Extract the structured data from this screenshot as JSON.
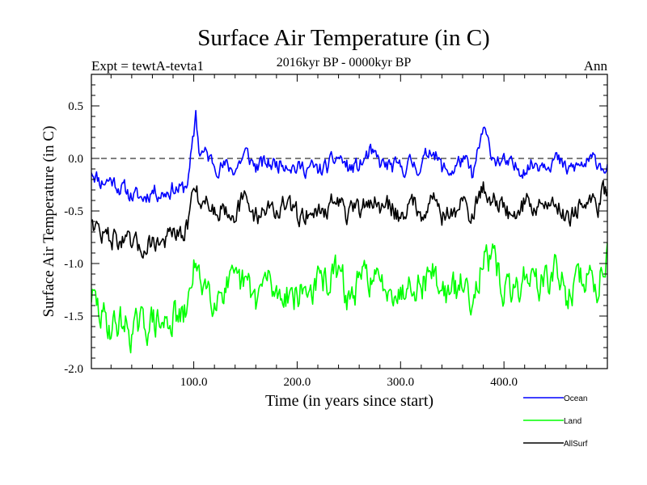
{
  "chart_data": {
    "type": "line",
    "title": "Surface Air Temperature (in C)",
    "subtitle": "2016kyr BP - 0000kyr BP",
    "expt_label": "Expt = tewtA-tevta1",
    "period_label": "Ann",
    "xlabel": "Time (in years since start)",
    "ylabel": "Surface Air Temperature (in C)",
    "xlim": [
      1,
      500
    ],
    "ylim": [
      -2.0,
      0.8
    ],
    "xticks": [
      100,
      200,
      300,
      400
    ],
    "xtick_labels": [
      "100.0",
      "200.0",
      "300.0",
      "400.0"
    ],
    "yticks": [
      -2.0,
      -1.5,
      -1.0,
      -0.5,
      0.0,
      0.5
    ],
    "ytick_labels": [
      "-2.0",
      "-1.5",
      "-1.0",
      "-0.5",
      "0.0",
      "0.5"
    ],
    "reference_line": 0.0,
    "series": [
      {
        "name": "Ocean",
        "color": "#0000ff",
        "x": [
          1,
          10,
          20,
          30,
          40,
          50,
          60,
          70,
          80,
          90,
          95,
          100,
          102,
          105,
          110,
          120,
          130,
          140,
          150,
          160,
          170,
          180,
          190,
          200,
          210,
          220,
          230,
          240,
          250,
          260,
          270,
          280,
          290,
          300,
          310,
          320,
          330,
          340,
          350,
          360,
          370,
          380,
          385,
          390,
          400,
          410,
          420,
          430,
          440,
          450,
          460,
          470,
          480,
          490,
          495,
          500
        ],
        "values": [
          -0.1,
          -0.22,
          -0.2,
          -0.28,
          -0.35,
          -0.38,
          -0.3,
          -0.33,
          -0.28,
          -0.3,
          -0.18,
          0.2,
          0.45,
          0.08,
          0.05,
          -0.05,
          -0.08,
          -0.1,
          0.05,
          -0.08,
          -0.05,
          -0.05,
          -0.02,
          -0.1,
          -0.08,
          -0.12,
          -0.08,
          0.02,
          -0.1,
          -0.08,
          0.05,
          -0.05,
          -0.08,
          -0.1,
          -0.05,
          -0.08,
          0.12,
          -0.1,
          -0.12,
          0.0,
          -0.18,
          0.28,
          0.12,
          0.02,
          -0.05,
          -0.1,
          -0.08,
          -0.05,
          -0.02,
          0.0,
          -0.12,
          -0.08,
          -0.05,
          -0.02,
          -0.05,
          -0.1
        ]
      },
      {
        "name": "Land",
        "color": "#00ff00",
        "x": [
          1,
          10,
          20,
          30,
          40,
          50,
          60,
          70,
          80,
          90,
          95,
          100,
          102,
          105,
          110,
          120,
          130,
          140,
          150,
          160,
          170,
          180,
          190,
          200,
          210,
          220,
          230,
          240,
          250,
          260,
          270,
          280,
          290,
          300,
          310,
          320,
          330,
          340,
          350,
          360,
          370,
          380,
          385,
          390,
          400,
          410,
          420,
          430,
          440,
          450,
          460,
          470,
          480,
          490,
          495,
          500
        ],
        "values": [
          -1.3,
          -1.5,
          -1.6,
          -1.55,
          -1.65,
          -1.6,
          -1.55,
          -1.6,
          -1.5,
          -1.55,
          -1.4,
          -0.95,
          -1.05,
          -1.2,
          -1.15,
          -1.3,
          -1.2,
          -1.25,
          -1.2,
          -1.35,
          -1.15,
          -1.3,
          -1.25,
          -1.3,
          -1.25,
          -1.2,
          -1.15,
          -1.1,
          -1.35,
          -1.2,
          -1.1,
          -1.25,
          -1.15,
          -1.3,
          -1.1,
          -1.2,
          -1.05,
          -1.25,
          -1.3,
          -1.2,
          -1.3,
          -0.9,
          -1.05,
          -1.0,
          -1.25,
          -1.3,
          -1.1,
          -1.15,
          -1.2,
          -1.05,
          -1.3,
          -1.2,
          -1.1,
          -1.25,
          -1.0,
          -0.85
        ]
      },
      {
        "name": "AllSurf",
        "color": "#000000",
        "x": [
          1,
          10,
          20,
          30,
          40,
          50,
          60,
          70,
          80,
          90,
          95,
          100,
          102,
          105,
          110,
          120,
          130,
          140,
          150,
          160,
          170,
          180,
          190,
          200,
          210,
          220,
          230,
          240,
          250,
          260,
          270,
          280,
          290,
          300,
          310,
          320,
          330,
          340,
          350,
          360,
          370,
          380,
          385,
          390,
          400,
          410,
          420,
          430,
          440,
          450,
          460,
          470,
          480,
          490,
          495,
          500
        ],
        "values": [
          -0.55,
          -0.72,
          -0.75,
          -0.78,
          -0.85,
          -0.85,
          -0.78,
          -0.8,
          -0.72,
          -0.78,
          -0.6,
          -0.25,
          -0.2,
          -0.4,
          -0.38,
          -0.5,
          -0.45,
          -0.5,
          -0.4,
          -0.55,
          -0.45,
          -0.5,
          -0.45,
          -0.55,
          -0.5,
          -0.52,
          -0.45,
          -0.4,
          -0.55,
          -0.5,
          -0.38,
          -0.48,
          -0.45,
          -0.55,
          -0.42,
          -0.5,
          -0.35,
          -0.52,
          -0.55,
          -0.42,
          -0.55,
          -0.25,
          -0.38,
          -0.35,
          -0.5,
          -0.55,
          -0.42,
          -0.45,
          -0.45,
          -0.4,
          -0.55,
          -0.48,
          -0.42,
          -0.5,
          -0.35,
          -0.3
        ]
      }
    ],
    "legend_position": "bottom-right"
  }
}
